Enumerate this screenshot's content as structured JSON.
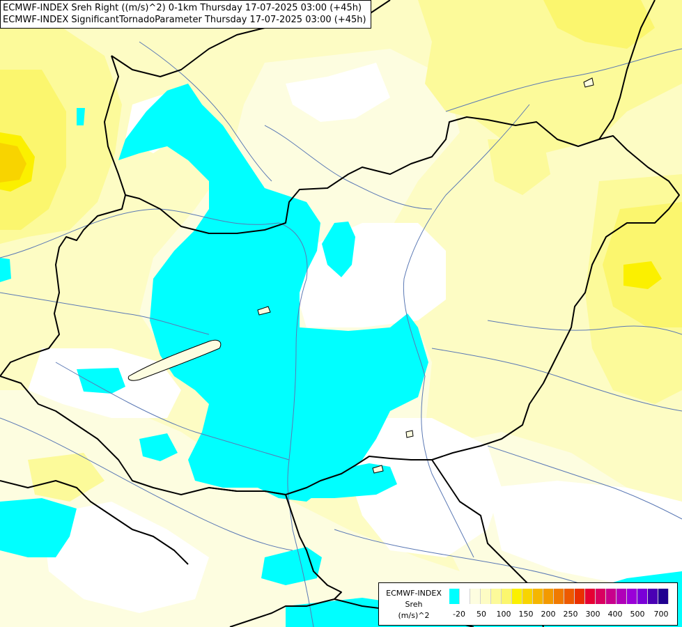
{
  "header": {
    "line1": "ECMWF-INDEX Sreh Right ((m/s)^2) 0-1km Thursday 17-07-2025 03:00 (+45h)",
    "line2": "ECMWF-INDEX SignificantTornadoParameter Thursday 17-07-2025 03:00 (+45h)"
  },
  "legend": {
    "line1": "ECMWF-INDEX",
    "line2": "Sreh",
    "line3": "(m/s)^2",
    "colors": [
      "#00ffff",
      "#ffffff",
      "#fdfde0",
      "#fdfcc4",
      "#fcfa9a",
      "#fbf66e",
      "#fbf000",
      "#f8d400",
      "#f5b600",
      "#f39a00",
      "#f07a00",
      "#ed5a00",
      "#ea3000",
      "#e60033",
      "#d90060",
      "#c8008c",
      "#b000b8",
      "#9a00d8",
      "#7a00d8",
      "#4a00b4",
      "#200090"
    ],
    "ticks": [
      "-20",
      "50",
      "100",
      "150",
      "200",
      "250",
      "300",
      "400",
      "500",
      "700"
    ]
  },
  "colors": {
    "background": "#fdfcc4",
    "light": "#fdfde0",
    "white": "#ffffff",
    "yellow": "#fcfa9a",
    "yellow_strong": "#fbf66e",
    "gold": "#fbf000",
    "orange": "#f8d400",
    "cyan": "#00ffff",
    "border": "#000000",
    "river": "#5a78b4"
  }
}
